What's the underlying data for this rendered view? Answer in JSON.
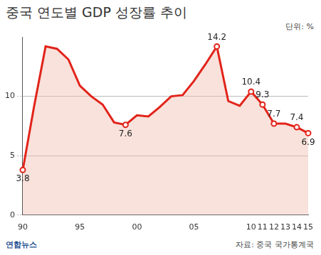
{
  "chart_data": {
    "type": "line",
    "title": "중국 연도별 GDP 성장률 추이",
    "annotations": [
      "단위: %",
      "자료: 중국 국가통계국",
      "연합뉴스"
    ],
    "categories": [
      "90",
      null,
      null,
      null,
      null,
      "95",
      null,
      null,
      null,
      null,
      "00",
      null,
      null,
      null,
      null,
      "05",
      null,
      null,
      null,
      null,
      "10",
      "11",
      "12",
      "13",
      "14",
      "15"
    ],
    "values": [
      3.8,
      9.2,
      14.2,
      14.0,
      13.1,
      10.9,
      10.0,
      9.3,
      7.8,
      7.6,
      8.4,
      8.3,
      9.1,
      10.0,
      10.1,
      11.3,
      12.7,
      14.2,
      9.6,
      9.2,
      10.4,
      9.3,
      7.7,
      7.7,
      7.4,
      6.9
    ],
    "value_labels": [
      "3.8",
      null,
      null,
      null,
      null,
      null,
      null,
      null,
      null,
      "7.6",
      null,
      null,
      null,
      null,
      null,
      null,
      null,
      "14.2",
      null,
      null,
      "10.4",
      "9.3",
      "7.7",
      null,
      "7.4",
      "6.9"
    ],
    "data_labels": true,
    "color": "#e2231a",
    "marker": "circle",
    "ylim": [
      0,
      15
    ],
    "yticks": [
      0,
      5,
      10
    ],
    "grid": true
  }
}
